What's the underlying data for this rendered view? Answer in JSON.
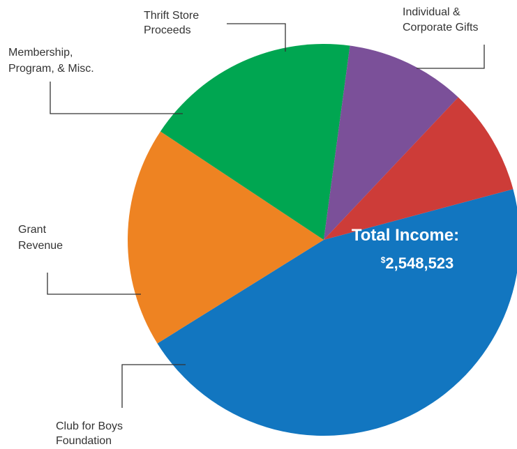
{
  "chart_data": {
    "type": "pie",
    "title": "",
    "center_label": {
      "title": "Total Income:",
      "currency": "$",
      "value": "2,548,523"
    },
    "slices": [
      {
        "label": "Individual & Corporate Gifts",
        "lines": [
          "Individual &",
          "Corporate Gifts"
        ],
        "value": 45.3,
        "color": "#1276c0"
      },
      {
        "label": "Club for Boys Foundation",
        "lines": [
          "Club for Boys",
          "Foundation"
        ],
        "value": 18.2,
        "color": "#ee8322"
      },
      {
        "label": "Grant Revenue",
        "lines": [
          "Grant",
          "Revenue"
        ],
        "value": 17.8,
        "color": "#00a651"
      },
      {
        "label": "Membership, Program, & Misc.",
        "lines": [
          "Membership,",
          "Program, & Misc."
        ],
        "value": 9.9,
        "color": "#7b5099"
      },
      {
        "label": "Thrift Store Proceeds",
        "lines": [
          "Thrift Store",
          "Proceeds"
        ],
        "value": 8.8,
        "color": "#cd3c38"
      }
    ]
  }
}
